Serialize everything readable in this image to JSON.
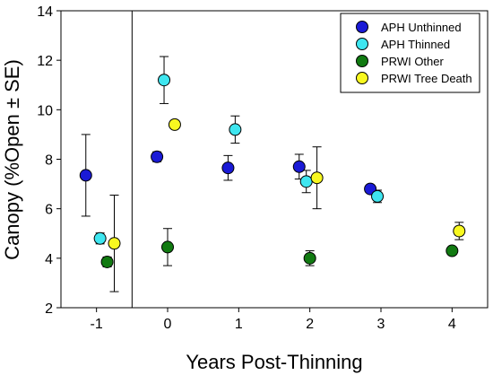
{
  "chart_data": {
    "type": "scatter",
    "title": "",
    "xlabel": "Years Post-Thinning",
    "ylabel": "Canopy (%Open ± SE)",
    "xlim": [
      -1.5,
      4.5
    ],
    "ylim": [
      2,
      14
    ],
    "x_ticks": [
      -1,
      0,
      1,
      2,
      3,
      4
    ],
    "y_ticks": [
      2,
      4,
      6,
      8,
      10,
      12,
      14
    ],
    "reference_line_x": -0.5,
    "grid": false,
    "legend_position": "top-right",
    "series": [
      {
        "name": "APH Unthinned",
        "color": "#1a1ad6",
        "points": [
          {
            "x": -1.15,
            "y": 7.35,
            "se": 1.65
          },
          {
            "x": -0.15,
            "y": 8.1,
            "se": 0.2
          },
          {
            "x": 0.85,
            "y": 7.65,
            "se": 0.5
          },
          {
            "x": 1.85,
            "y": 7.7,
            "se": 0.5
          },
          {
            "x": 2.85,
            "y": 6.8,
            "se": null
          }
        ]
      },
      {
        "name": "APH Thinned",
        "color": "#3ee6f0",
        "points": [
          {
            "x": -0.95,
            "y": 4.8,
            "se": 0.22
          },
          {
            "x": -0.05,
            "y": 11.2,
            "se": 0.95
          },
          {
            "x": 0.95,
            "y": 9.2,
            "se": 0.55
          },
          {
            "x": 1.95,
            "y": 7.1,
            "se": 0.45
          },
          {
            "x": 2.95,
            "y": 6.5,
            "se": 0.25
          }
        ]
      },
      {
        "name": "PRWI Other",
        "color": "#117a11",
        "points": [
          {
            "x": -0.85,
            "y": 3.85,
            "se": 0.2
          },
          {
            "x": 0.0,
            "y": 4.45,
            "se": 0.75
          },
          {
            "x": 2.0,
            "y": 4.0,
            "se": 0.3
          },
          {
            "x": 4.0,
            "y": 4.3,
            "se": 0.15
          }
        ]
      },
      {
        "name": "PRWI Tree Death",
        "color": "#f8f820",
        "points": [
          {
            "x": -0.75,
            "y": 4.6,
            "se": 1.95
          },
          {
            "x": 0.1,
            "y": 9.4,
            "se": null
          },
          {
            "x": 2.1,
            "y": 7.25,
            "se": 1.25
          },
          {
            "x": 4.1,
            "y": 5.1,
            "se": 0.35
          }
        ]
      }
    ]
  }
}
